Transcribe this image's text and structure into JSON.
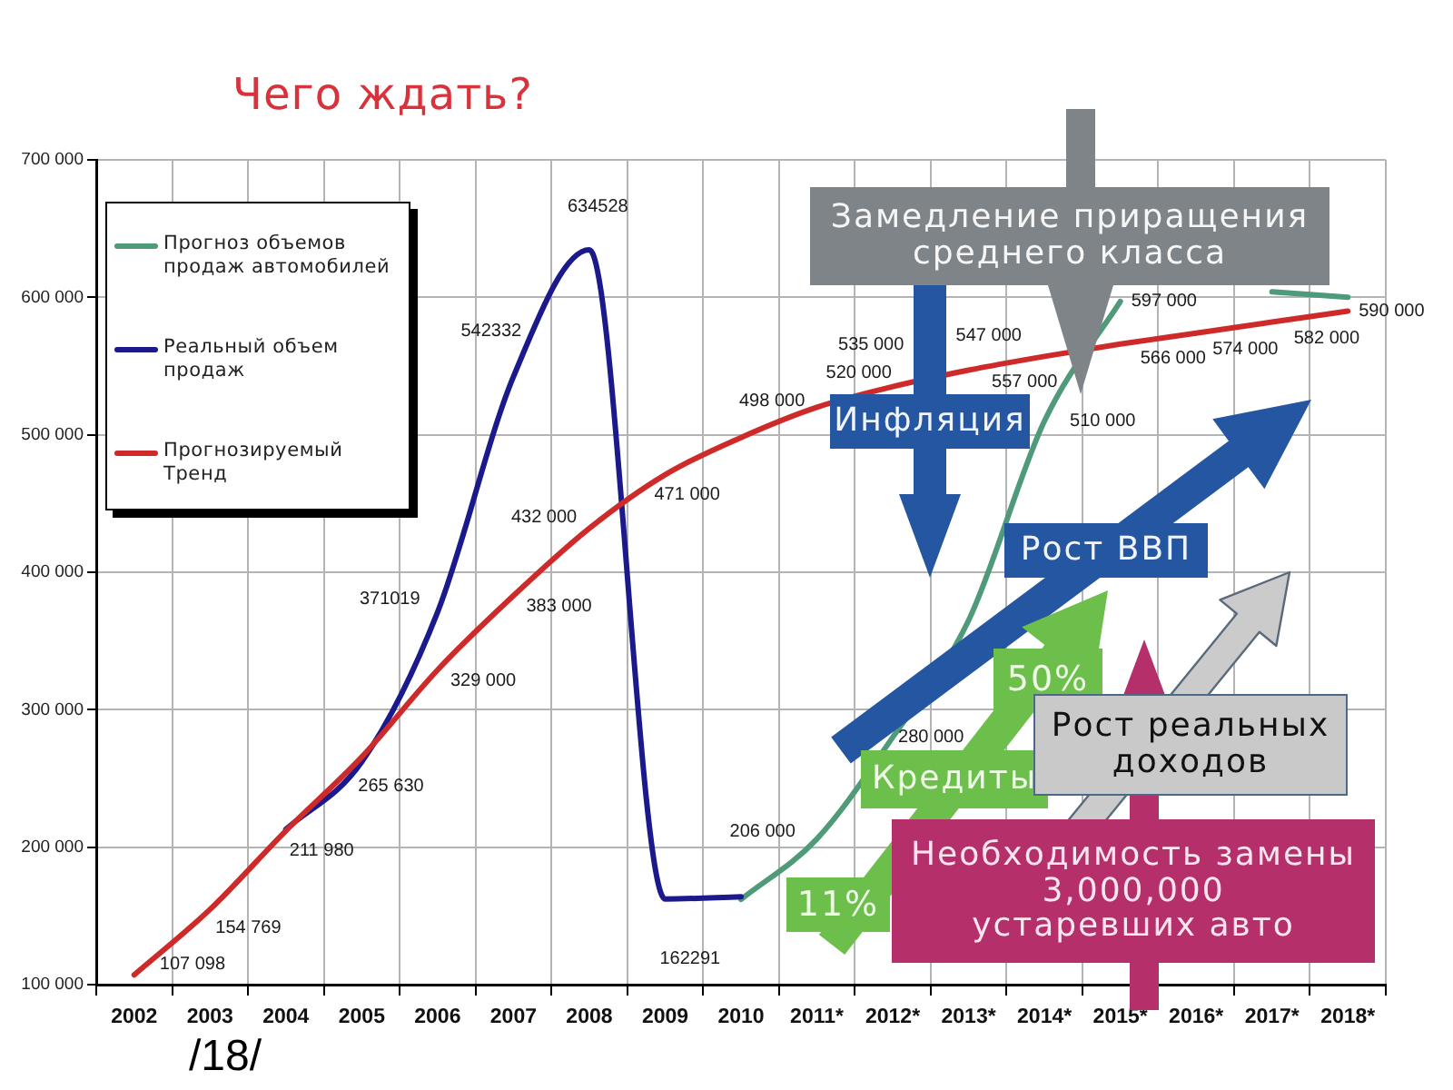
{
  "chart_data": {
    "type": "line",
    "title": "Чего ждать?",
    "categories": [
      "2002",
      "2003",
      "2004",
      "2005",
      "2006",
      "2007",
      "2008",
      "2009",
      "2010",
      "2011*",
      "2012*",
      "2013*",
      "2014*",
      "2015*",
      "2016*",
      "2017*",
      "2018*"
    ],
    "series": [
      {
        "name": "Прогноз объемов продаж автомобилей",
        "color": "#4f9a78",
        "values": [
          null,
          null,
          null,
          null,
          null,
          null,
          null,
          null,
          162000,
          206000,
          280000,
          365000,
          510000,
          597000,
          null,
          604000,
          600000
        ],
        "value_labels": [
          null,
          null,
          null,
          null,
          null,
          null,
          null,
          null,
          null,
          "206 000",
          "280 000",
          null,
          "510 000",
          "597 000",
          null,
          null,
          null
        ]
      },
      {
        "name": "Реальный объем продаж",
        "color": "#1a1a8c",
        "values": [
          null,
          null,
          213000,
          262000,
          371019,
          542332,
          634528,
          162291,
          164000,
          null,
          null,
          null,
          null,
          null,
          null,
          null,
          null
        ],
        "value_labels": [
          null,
          null,
          null,
          null,
          "371019",
          "542332",
          "634528",
          "162291",
          null,
          null,
          null,
          null,
          null,
          null,
          null,
          null,
          null
        ]
      },
      {
        "name": "Прогнозируемый Тренд",
        "color": "#cf2a2a",
        "values": [
          107098,
          154769,
          211980,
          265630,
          329000,
          383000,
          432000,
          471000,
          498000,
          520000,
          535000,
          547000,
          557000,
          566000,
          574000,
          582000,
          590000
        ],
        "value_labels": [
          "107 098",
          "154 769",
          "211 980",
          "265 630",
          "329 000",
          "383 000",
          "432 000",
          "471 000",
          "498 000",
          "520 000",
          "535 000",
          "547 000",
          "557 000",
          "566 000",
          "574 000",
          "582 000",
          "590 000"
        ]
      }
    ],
    "ylim": [
      100000,
      700000
    ],
    "yticks": [
      {
        "value": 100000,
        "label": "100 000"
      },
      {
        "value": 200000,
        "label": "200 000"
      },
      {
        "value": 300000,
        "label": "300 000"
      },
      {
        "value": 400000,
        "label": "400 000"
      },
      {
        "value": 500000,
        "label": "500 000"
      },
      {
        "value": 600000,
        "label": "600 000"
      },
      {
        "value": 700000,
        "label": "700 000"
      }
    ],
    "grid": true,
    "legend": "top left",
    "marker": "none",
    "annotations": [
      "Замедление приращения\nсреднего класса",
      "Инфляция",
      "Рост ВВП",
      "50%",
      "Кредиты",
      "11%",
      "Рост реальных\nдоходов",
      "Необходимость замены\n3,000,000\nустаревших авто",
      "/18/"
    ]
  }
}
